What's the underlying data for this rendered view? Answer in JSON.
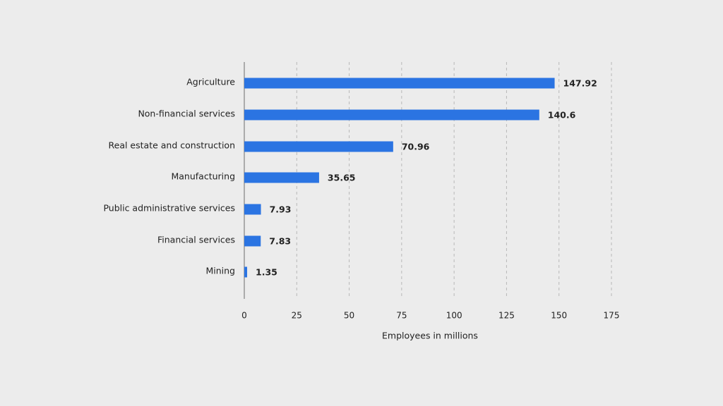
{
  "colors": {
    "background": "#ececec",
    "bar": "#2b74e2",
    "axis": "#6b6b6b",
    "grid": "#b8b8b8",
    "text": "#222222"
  },
  "chart_data": {
    "type": "bar",
    "orientation": "horizontal",
    "categories": [
      "Agriculture",
      "Non-financial services",
      "Real estate and construction",
      "Manufacturing",
      "Public administrative services",
      "Financial services",
      "Mining"
    ],
    "values": [
      147.92,
      140.6,
      70.96,
      35.65,
      7.93,
      7.83,
      1.35
    ],
    "value_labels": [
      "147.92",
      "140.6",
      "70.96",
      "35.65",
      "7.93",
      "7.83",
      "1.35"
    ],
    "xlabel": "Employees in millions",
    "xlim": [
      0,
      175
    ],
    "xticks": [
      0,
      25,
      50,
      75,
      100,
      125,
      150,
      175
    ],
    "grid": "vertical-dashed",
    "legend": "none"
  }
}
